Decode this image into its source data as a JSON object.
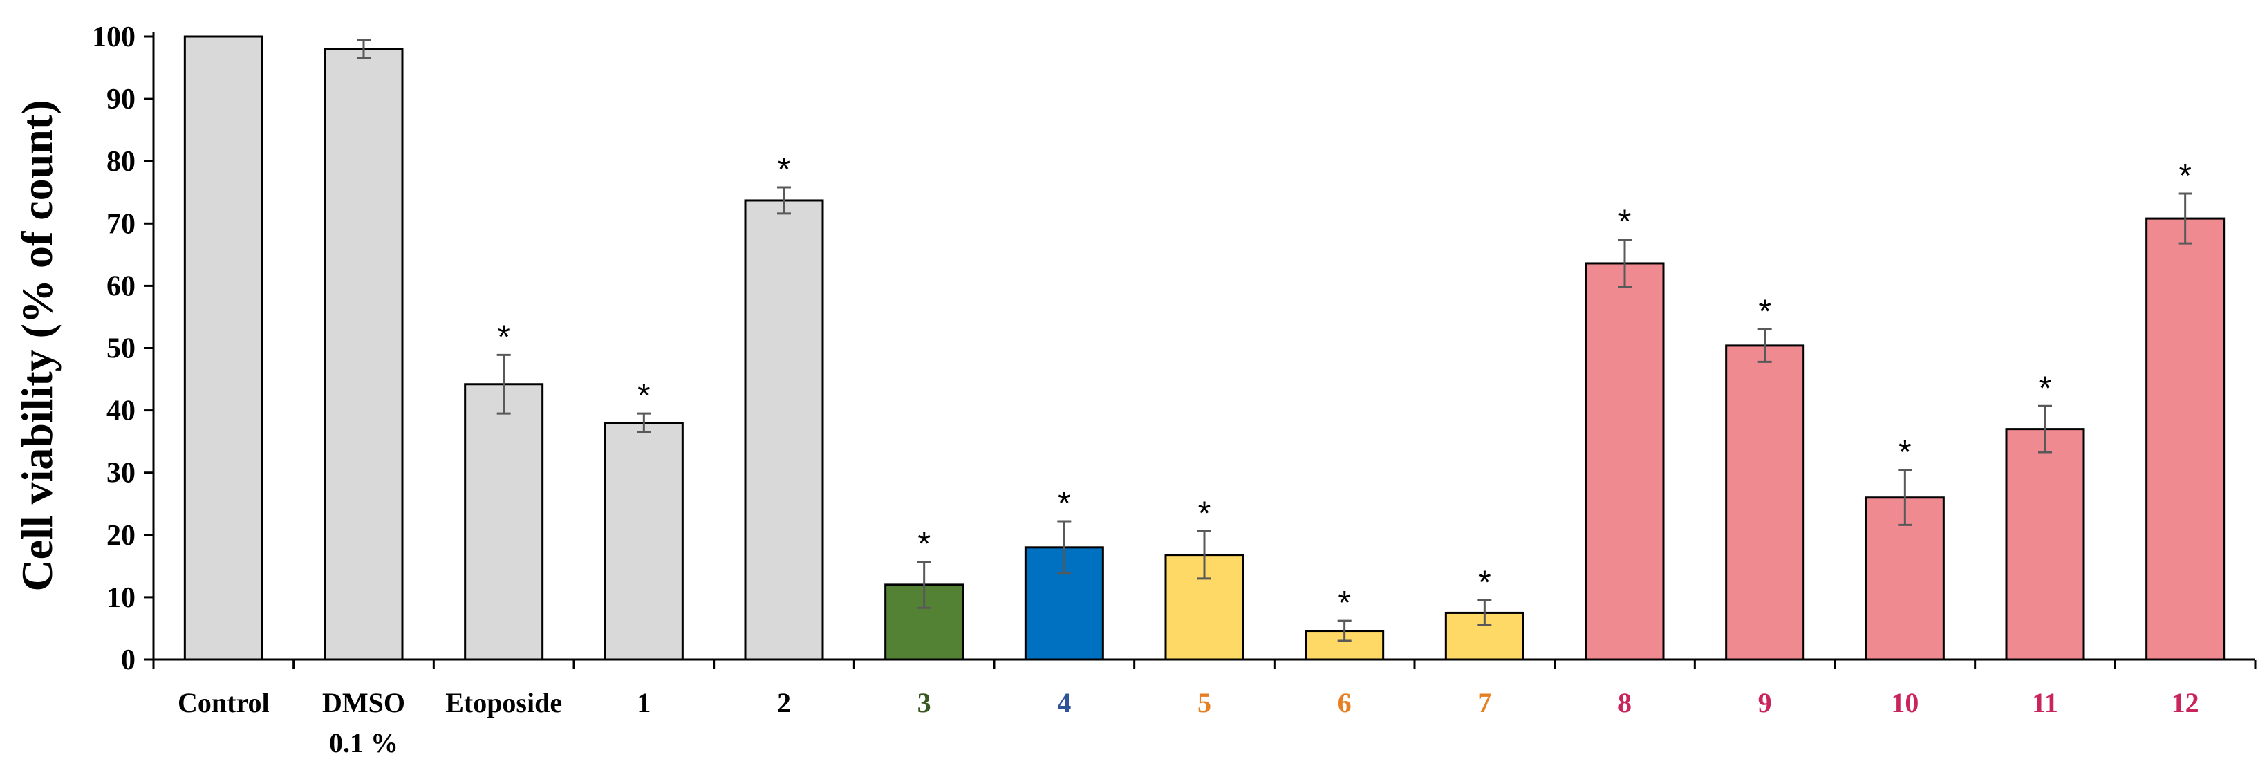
{
  "chart_data": {
    "type": "bar",
    "ylabel": "Cell viability (% of count)",
    "xlabel": "",
    "ylim": [
      0,
      100
    ],
    "yticks": [
      0,
      10,
      20,
      30,
      40,
      50,
      60,
      70,
      80,
      90,
      100
    ],
    "grid": false,
    "legend": "none",
    "significance_marker": "*",
    "categories": [
      {
        "label": "Control",
        "sublabel": "",
        "value": 100,
        "error": 0,
        "significant": false,
        "bar_color": "#d9d9d9",
        "label_color": "#000000",
        "label_size": "small"
      },
      {
        "label": "DMSO",
        "sublabel": "0.1 %",
        "value": 98,
        "error": 1.5,
        "significant": false,
        "bar_color": "#d9d9d9",
        "label_color": "#000000",
        "label_size": "small"
      },
      {
        "label": "Etoposide",
        "sublabel": "",
        "value": 44.2,
        "error": 4.7,
        "significant": true,
        "bar_color": "#d9d9d9",
        "label_color": "#000000",
        "label_size": "small"
      },
      {
        "label": "1",
        "sublabel": "",
        "value": 38,
        "error": 1.5,
        "significant": true,
        "bar_color": "#d9d9d9",
        "label_color": "#000000",
        "label_size": "large"
      },
      {
        "label": "2",
        "sublabel": "",
        "value": 73.7,
        "error": 2.1,
        "significant": true,
        "bar_color": "#d9d9d9",
        "label_color": "#000000",
        "label_size": "large"
      },
      {
        "label": "3",
        "sublabel": "",
        "value": 12,
        "error": 3.7,
        "significant": true,
        "bar_color": "#548235",
        "label_color": "#385723",
        "label_size": "large"
      },
      {
        "label": "4",
        "sublabel": "",
        "value": 18,
        "error": 4.2,
        "significant": true,
        "bar_color": "#0070c0",
        "label_color": "#2f5597",
        "label_size": "large"
      },
      {
        "label": "5",
        "sublabel": "",
        "value": 16.8,
        "error": 3.8,
        "significant": true,
        "bar_color": "#ffd966",
        "label_color": "#e67e22",
        "label_size": "large"
      },
      {
        "label": "6",
        "sublabel": "",
        "value": 4.6,
        "error": 1.6,
        "significant": true,
        "bar_color": "#ffd966",
        "label_color": "#e67e22",
        "label_size": "large"
      },
      {
        "label": "7",
        "sublabel": "",
        "value": 7.5,
        "error": 2.0,
        "significant": true,
        "bar_color": "#ffd966",
        "label_color": "#e67e22",
        "label_size": "large"
      },
      {
        "label": "8",
        "sublabel": "",
        "value": 63.6,
        "error": 3.8,
        "significant": true,
        "bar_color": "#f08a91",
        "label_color": "#c9245c",
        "label_size": "large"
      },
      {
        "label": "9",
        "sublabel": "",
        "value": 50.4,
        "error": 2.6,
        "significant": true,
        "bar_color": "#f08a91",
        "label_color": "#c9245c",
        "label_size": "large"
      },
      {
        "label": "10",
        "sublabel": "",
        "value": 26,
        "error": 4.4,
        "significant": true,
        "bar_color": "#f08a91",
        "label_color": "#c9245c",
        "label_size": "large"
      },
      {
        "label": "11",
        "sublabel": "",
        "value": 37,
        "error": 3.7,
        "significant": true,
        "bar_color": "#f08a91",
        "label_color": "#c9245c",
        "label_size": "large"
      },
      {
        "label": "12",
        "sublabel": "",
        "value": 70.8,
        "error": 4.0,
        "significant": true,
        "bar_color": "#f08a91",
        "label_color": "#c9245c",
        "label_size": "large"
      }
    ]
  }
}
